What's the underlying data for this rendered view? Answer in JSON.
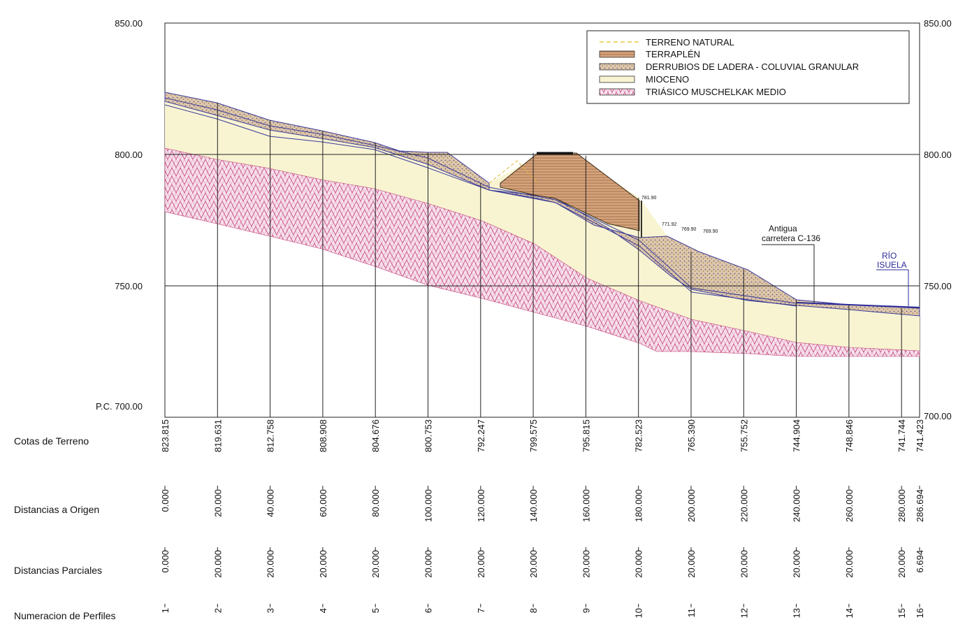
{
  "elevation_labels": {
    "left": [
      "850.00",
      "800.00",
      "750.00",
      "P.C. 700.00"
    ],
    "right": [
      "850.00",
      "800.00",
      "750.00",
      "700.00"
    ]
  },
  "legend": [
    {
      "label": "TERRENO NATURAL",
      "color": "#e8c840"
    },
    {
      "label": "TERRAPLÉN",
      "color": "#c9956b"
    },
    {
      "label": "DERRUBIOS DE LADERA - COLUVIAL GRANULAR",
      "color": "#d8c2a6"
    },
    {
      "label": "MIOCENO",
      "color": "#f7f3cf"
    },
    {
      "label": "TRIÁSICO MUSCHELKAK MEDIO",
      "color": "#f3d6e8"
    }
  ],
  "annotations": {
    "antigua": "Antigua",
    "carretera": "carretera C-136",
    "rio": "RÍO",
    "isuela": "ISUELA",
    "small_levels": [
      "781.90",
      "771.92",
      "769.90",
      "769.90"
    ]
  },
  "table_rows": {
    "cotas": "Cotas de Terreno",
    "dist_origen": "Distancias a Origen",
    "dist_parciales": "Distancias Parciales",
    "numeracion": "Numeracion de Perfiles"
  },
  "profiles": [
    {
      "num": "1",
      "cota": "823.815",
      "origen": "0.000",
      "parcial": "0.000"
    },
    {
      "num": "2",
      "cota": "819.631",
      "origen": "20.000",
      "parcial": "20.000"
    },
    {
      "num": "3",
      "cota": "812.758",
      "origen": "40.000",
      "parcial": "20.000"
    },
    {
      "num": "4",
      "cota": "808.908",
      "origen": "60.000",
      "parcial": "20.000"
    },
    {
      "num": "5",
      "cota": "804.676",
      "origen": "80.000",
      "parcial": "20.000"
    },
    {
      "num": "6",
      "cota": "800.753",
      "origen": "100.000",
      "parcial": "20.000"
    },
    {
      "num": "7",
      "cota": "792.247",
      "origen": "120.000",
      "parcial": "20.000"
    },
    {
      "num": "8",
      "cota": "799.575",
      "origen": "140.000",
      "parcial": "20.000"
    },
    {
      "num": "9",
      "cota": "795.815",
      "origen": "160.000",
      "parcial": "20.000"
    },
    {
      "num": "10",
      "cota": "782.523",
      "origen": "180.000",
      "parcial": "20.000"
    },
    {
      "num": "11",
      "cota": "765.390",
      "origen": "200.000",
      "parcial": "20.000"
    },
    {
      "num": "12",
      "cota": "755.752",
      "origen": "220.000",
      "parcial": "20.000"
    },
    {
      "num": "13",
      "cota": "744.904",
      "origen": "240.000",
      "parcial": "20.000"
    },
    {
      "num": "14",
      "cota": "748.846",
      "origen": "260.000",
      "parcial": "20.000"
    },
    {
      "num": "15",
      "cota": "741.744",
      "origen": "280.000",
      "parcial": "20.000"
    },
    {
      "num": "16",
      "cota": "741.423",
      "origen": "286.694",
      "parcial": "6.694"
    }
  ]
}
